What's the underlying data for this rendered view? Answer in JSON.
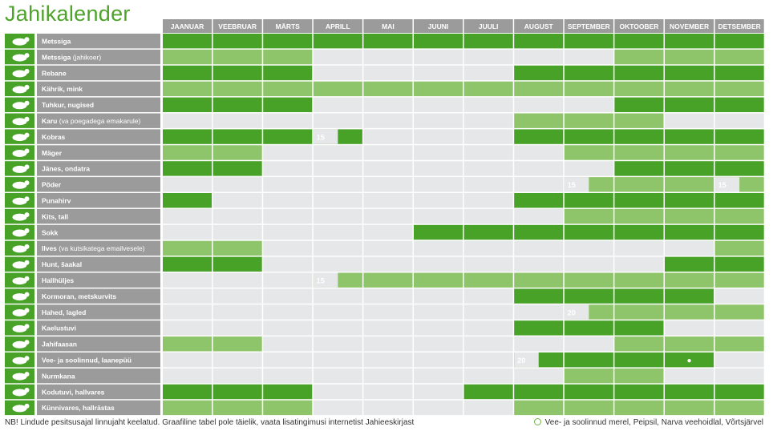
{
  "title": "Jahikalender",
  "months": [
    "JAANUAR",
    "VEEBRUAR",
    "MÄRTS",
    "APRILL",
    "MAI",
    "JUUNI",
    "JUULI",
    "AUGUST",
    "SEPTEMBER",
    "OKTOOBER",
    "NOVEMBER",
    "DETSEMBER"
  ],
  "colors": {
    "dark": "#48a228",
    "light": "#8ec46a",
    "empty": "#e6e7e8",
    "label": "#9b9b9b",
    "header": "#9b9b9b",
    "icon_bg": "#48a228"
  },
  "footnote": "NB! Lindude pesitsusajal linnujaht keelatud. Graafiline tabel pole täielik, vaata lisatingimusi internetist Jahieeskirjast",
  "legend": "Vee- ja soolinnud merel, Peipsil, Narva veehoidlal, Võrtsjärvel",
  "chart_data": {
    "type": "table",
    "season_codes": {
      "D": "dark green season",
      "L": "light green season",
      "-": "no season"
    },
    "rows": [
      {
        "name": "Metssiga",
        "icon": "boar-icon",
        "months": "DDDDDDDDDDDD"
      },
      {
        "name": "Metssiga (jahikoer)",
        "icon": "boar-icon",
        "months": "LLL------LLL"
      },
      {
        "name": "Rebane",
        "icon": "fox-icon",
        "months": "DDD----DDDDD"
      },
      {
        "name": "Kährik, mink",
        "icon": "raccoon-dog-icon",
        "months": "LLLLLLLLLLLL"
      },
      {
        "name": "Tuhkur, nugised",
        "icon": "marten-icon",
        "months": "DDD------DDD"
      },
      {
        "name": "Karu (va poegadega emakarule)",
        "icon": "bear-icon",
        "months": "-------LLL--"
      },
      {
        "name": "Kobras",
        "icon": "beaver-icon",
        "months": "DDDD---DDDDD",
        "labels": [
          {
            "month": 4,
            "text": "15"
          }
        ]
      },
      {
        "name": "Mäger",
        "icon": "badger-icon",
        "months": "LL------LLLL"
      },
      {
        "name": "Jänes, ondatra",
        "icon": "hare-icon",
        "months": "DD-------DDD"
      },
      {
        "name": "Põder",
        "icon": "moose-icon",
        "months": "--------LLLL",
        "labels": [
          {
            "month": 9,
            "text": "15"
          },
          {
            "month": 12,
            "text": "15"
          }
        ]
      },
      {
        "name": "Punahirv",
        "icon": "deer-icon",
        "months": "D------DDDDD"
      },
      {
        "name": "Kits, tall",
        "icon": "fawn-icon",
        "months": "--------LLLL"
      },
      {
        "name": "Sokk",
        "icon": "roe-buck-icon",
        "months": "-----DDDDDDD"
      },
      {
        "name": "Ilves (va kutsikatega emailvesele)",
        "icon": "lynx-icon",
        "months": "LL---------L"
      },
      {
        "name": "Hunt, šaakal",
        "icon": "wolf-icon",
        "months": "DD--------DD"
      },
      {
        "name": "Hallhüljes",
        "icon": "seal-icon",
        "months": "---LLLLLLLLL",
        "labels": [
          {
            "month": 4,
            "text": "15"
          }
        ]
      },
      {
        "name": "Kormoran, metskurvits",
        "icon": "cormorant-icon",
        "months": "-------DDDD-"
      },
      {
        "name": "Hahed, lagled",
        "icon": "goose-icon",
        "months": "--------LLLL",
        "labels": [
          {
            "month": 9,
            "text": "20"
          }
        ]
      },
      {
        "name": "Kaelustuvi",
        "icon": "pigeon-icon",
        "months": "-------DDD--"
      },
      {
        "name": "Jahifaasan",
        "icon": "pheasant-icon",
        "months": "LL-------LLL"
      },
      {
        "name": "Vee- ja soolinnud, laanepüü",
        "icon": "duck-icon",
        "months": "-------DDDD-",
        "labels": [
          {
            "month": 8,
            "text": "20"
          }
        ],
        "markers": [
          {
            "month": 11,
            "text": "●"
          }
        ]
      },
      {
        "name": "Nurmkana",
        "icon": "partridge-icon",
        "months": "--------LL--"
      },
      {
        "name": "Kodutuvi, hallvares",
        "icon": "crow-icon",
        "months": "DDD---DDDDDD"
      },
      {
        "name": "Künnivares, hallrästas",
        "icon": "rook-icon",
        "months": "LLL----LLLLL"
      }
    ]
  }
}
